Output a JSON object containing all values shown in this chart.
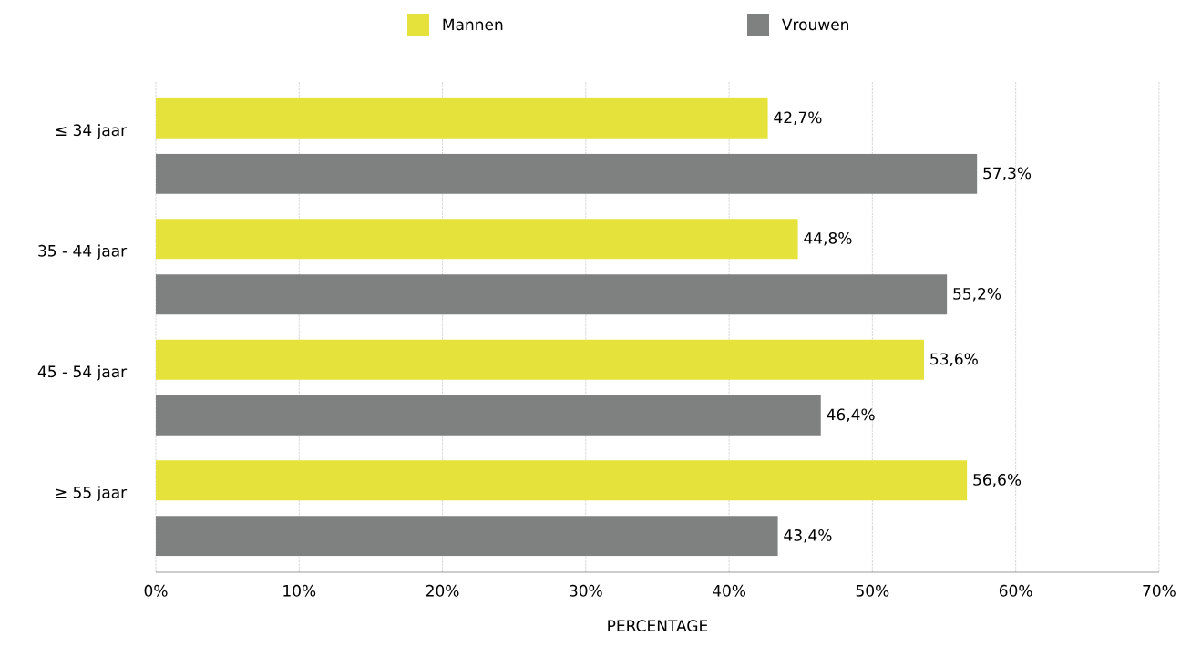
{
  "chart_data": {
    "type": "bar",
    "orientation": "horizontal",
    "xlabel": "PERCENTAGE",
    "categories": [
      "≤ 34 jaar",
      "35 - 44 jaar",
      "45 - 54 jaar",
      "≥ 55 jaar"
    ],
    "series": [
      {
        "name": "Mannen",
        "color": "#e6e23c",
        "values": [
          42.7,
          44.8,
          53.6,
          56.6
        ],
        "value_labels": [
          "42,7%",
          "44,8%",
          "53,6%",
          "56,6%"
        ]
      },
      {
        "name": "Vrouwen",
        "color": "#7f8080",
        "values": [
          57.3,
          55.2,
          46.4,
          43.4
        ],
        "value_labels": [
          "57,3%",
          "55,2%",
          "46,4%",
          "43,4%"
        ]
      }
    ],
    "xlim": [
      0,
      70
    ],
    "xticks": [
      {
        "value": 0,
        "label": "0%"
      },
      {
        "value": 10,
        "label": "10%"
      },
      {
        "value": 20,
        "label": "20%"
      },
      {
        "value": 30,
        "label": "30%"
      },
      {
        "value": 40,
        "label": "40%"
      },
      {
        "value": 50,
        "label": "50%"
      },
      {
        "value": 60,
        "label": "60%"
      },
      {
        "value": 70,
        "label": "70%"
      }
    ],
    "grid": "x",
    "legend": "top"
  }
}
